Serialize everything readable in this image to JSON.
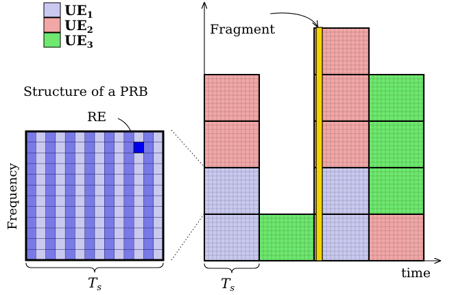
{
  "legend": {
    "items": [
      {
        "name": "UE",
        "sub": "1",
        "color": "#c9c9f0"
      },
      {
        "name": "UE",
        "sub": "2",
        "color": "#f2a7a7"
      },
      {
        "name": "UE",
        "sub": "3",
        "color": "#6ee86e"
      }
    ]
  },
  "prb_structure": {
    "title": "Structure of a PRB",
    "re_label": "RE",
    "ylabel": "Frequency",
    "duration_label": "T",
    "duration_sub": "s",
    "colors": {
      "light": "#c9c9f0",
      "dark": "#7a7ae6",
      "re": "#0000ee"
    }
  },
  "resource_grid": {
    "fragment_label": "Fragment",
    "xlabel": "time",
    "duration_label": "T",
    "duration_sub": "s",
    "fragment_color": "#f4d400",
    "columns": [
      {
        "blocks": [
          "ue1",
          "ue1",
          "ue2",
          "ue2"
        ]
      },
      {
        "blocks": [
          "ue3"
        ]
      },
      {
        "blocks": [
          "ue1",
          "ue1",
          "ue2",
          "ue2",
          "ue2"
        ]
      },
      {
        "blocks": [
          "ue2",
          "ue3",
          "ue3",
          "ue3"
        ]
      }
    ]
  }
}
